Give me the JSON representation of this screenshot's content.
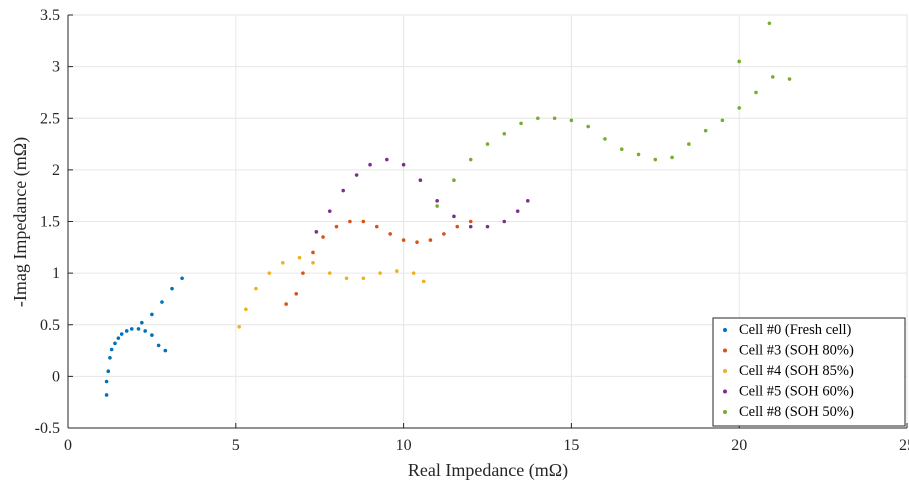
{
  "chart_data": {
    "type": "scatter",
    "title": "",
    "xlabel": "Real Impedance (mΩ)",
    "ylabel": "-Imag Impedance (mΩ)",
    "xlim": [
      0,
      25
    ],
    "ylim": [
      -0.5,
      3.5
    ],
    "x_ticks": [
      "0",
      "5",
      "10",
      "15",
      "20",
      "25"
    ],
    "y_ticks": [
      "-0.5",
      "0",
      "0.5",
      "1",
      "1.5",
      "2",
      "2.5",
      "3",
      "3.5"
    ],
    "grid": true,
    "legend_position": "bottom-right",
    "series": [
      {
        "name": "Cell #0 (Fresh cell)",
        "color": "#0072BD",
        "points": [
          [
            1.15,
            -0.18
          ],
          [
            1.15,
            -0.05
          ],
          [
            1.2,
            0.05
          ],
          [
            1.25,
            0.18
          ],
          [
            1.3,
            0.26
          ],
          [
            1.4,
            0.32
          ],
          [
            1.5,
            0.37
          ],
          [
            1.6,
            0.41
          ],
          [
            1.75,
            0.44
          ],
          [
            1.9,
            0.46
          ],
          [
            2.1,
            0.46
          ],
          [
            2.3,
            0.44
          ],
          [
            2.5,
            0.4
          ],
          [
            2.7,
            0.3
          ],
          [
            2.9,
            0.25
          ],
          [
            2.2,
            0.52
          ],
          [
            2.5,
            0.6
          ],
          [
            2.8,
            0.72
          ],
          [
            3.1,
            0.85
          ],
          [
            3.4,
            0.95
          ]
        ]
      },
      {
        "name": "Cell #3 (SOH 80%)",
        "color": "#D95319",
        "points": [
          [
            6.5,
            0.7
          ],
          [
            6.8,
            0.8
          ],
          [
            7.0,
            1.0
          ],
          [
            7.3,
            1.2
          ],
          [
            7.6,
            1.35
          ],
          [
            8.0,
            1.45
          ],
          [
            8.4,
            1.5
          ],
          [
            8.8,
            1.5
          ],
          [
            9.2,
            1.45
          ],
          [
            9.6,
            1.38
          ],
          [
            10.0,
            1.32
          ],
          [
            10.4,
            1.3
          ],
          [
            10.8,
            1.32
          ],
          [
            11.2,
            1.38
          ],
          [
            11.6,
            1.45
          ],
          [
            12.0,
            1.5
          ]
        ]
      },
      {
        "name": "Cell #4 (SOH 85%)",
        "color": "#EDB120",
        "points": [
          [
            5.1,
            0.48
          ],
          [
            5.3,
            0.65
          ],
          [
            5.6,
            0.85
          ],
          [
            6.0,
            1.0
          ],
          [
            6.4,
            1.1
          ],
          [
            6.9,
            1.15
          ],
          [
            7.3,
            1.1
          ],
          [
            7.8,
            1.0
          ],
          [
            8.3,
            0.95
          ],
          [
            8.8,
            0.95
          ],
          [
            9.3,
            1.0
          ],
          [
            9.8,
            1.02
          ],
          [
            10.3,
            1.0
          ],
          [
            10.6,
            0.92
          ]
        ]
      },
      {
        "name": "Cell #5 (SOH 60%)",
        "color": "#7E2F8E",
        "points": [
          [
            7.4,
            1.4
          ],
          [
            7.8,
            1.6
          ],
          [
            8.2,
            1.8
          ],
          [
            8.6,
            1.95
          ],
          [
            9.0,
            2.05
          ],
          [
            9.5,
            2.1
          ],
          [
            10.0,
            2.05
          ],
          [
            10.5,
            1.9
          ],
          [
            11.0,
            1.7
          ],
          [
            11.5,
            1.55
          ],
          [
            12.0,
            1.45
          ],
          [
            12.5,
            1.45
          ],
          [
            13.0,
            1.5
          ],
          [
            13.4,
            1.6
          ],
          [
            13.7,
            1.7
          ]
        ]
      },
      {
        "name": "Cell #8 (SOH 50%)",
        "color": "#77AC30",
        "points": [
          [
            11.0,
            1.65
          ],
          [
            11.5,
            1.9
          ],
          [
            12.0,
            2.1
          ],
          [
            12.5,
            2.25
          ],
          [
            13.0,
            2.35
          ],
          [
            13.5,
            2.45
          ],
          [
            14.0,
            2.5
          ],
          [
            14.5,
            2.5
          ],
          [
            15.0,
            2.48
          ],
          [
            15.5,
            2.42
          ],
          [
            16.0,
            2.3
          ],
          [
            16.5,
            2.2
          ],
          [
            17.0,
            2.15
          ],
          [
            17.5,
            2.1
          ],
          [
            18.0,
            2.12
          ],
          [
            18.5,
            2.25
          ],
          [
            19.0,
            2.38
          ],
          [
            19.5,
            2.48
          ],
          [
            20.0,
            2.6
          ],
          [
            20.5,
            2.75
          ],
          [
            21.0,
            2.9
          ],
          [
            21.5,
            2.88
          ],
          [
            20.0,
            3.05
          ],
          [
            20.9,
            3.42
          ]
        ]
      }
    ]
  }
}
